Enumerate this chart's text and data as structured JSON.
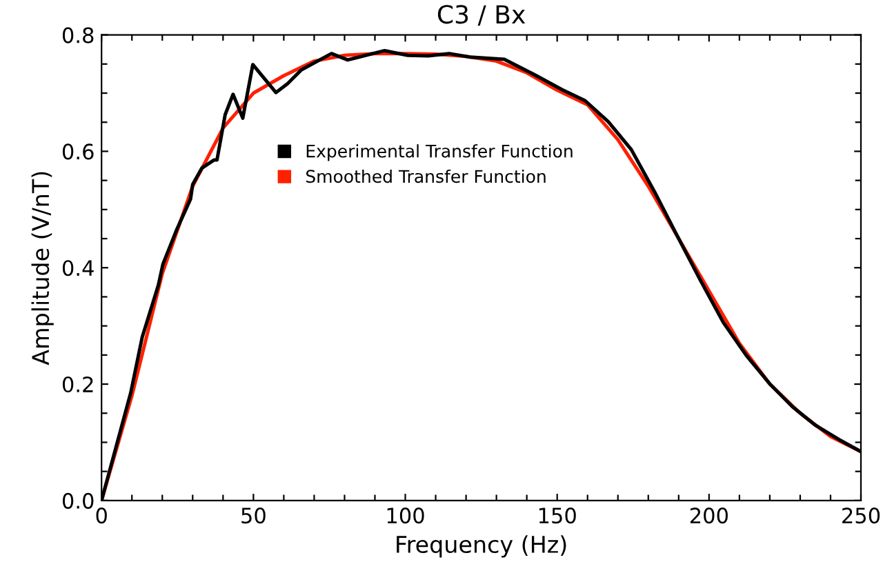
{
  "chart_data": {
    "type": "line",
    "title": "C3 / Bx",
    "xlabel": "Frequency (Hz)",
    "ylabel": "Amplitude (V/nT)",
    "xlim": [
      0,
      250
    ],
    "ylim": [
      0,
      0.8
    ],
    "xticks": [
      0,
      {
        "value": 10,
        "label": null
      },
      {
        "value": 20,
        "label": null
      },
      {
        "value": 30,
        "label": null
      },
      {
        "value": 40,
        "label": null
      },
      50,
      {
        "value": 60,
        "label": null
      },
      {
        "value": 70,
        "label": null
      },
      {
        "value": 80,
        "label": null
      },
      {
        "value": 90,
        "label": null
      },
      100,
      {
        "value": 110,
        "label": null
      },
      {
        "value": 120,
        "label": null
      },
      {
        "value": 130,
        "label": null
      },
      {
        "value": 140,
        "label": null
      },
      150,
      {
        "value": 160,
        "label": null
      },
      {
        "value": 170,
        "label": null
      },
      {
        "value": 180,
        "label": null
      },
      {
        "value": 190,
        "label": null
      },
      200,
      {
        "value": 210,
        "label": null
      },
      {
        "value": 220,
        "label": null
      },
      {
        "value": 230,
        "label": null
      },
      {
        "value": 240,
        "label": null
      },
      250
    ],
    "yticks": [
      {
        "value": 0,
        "label": "0.0"
      },
      {
        "value": 0.05,
        "label": null
      },
      {
        "value": 0.1,
        "label": null
      },
      {
        "value": 0.15,
        "label": null
      },
      0.2,
      {
        "value": 0.25,
        "label": null
      },
      {
        "value": 0.3,
        "label": null
      },
      {
        "value": 0.35,
        "label": null
      },
      0.4,
      {
        "value": 0.45,
        "label": null
      },
      {
        "value": 0.5,
        "label": null
      },
      {
        "value": 0.55,
        "label": null
      },
      0.6,
      {
        "value": 0.65,
        "label": null
      },
      {
        "value": 0.7,
        "label": null
      },
      {
        "value": 0.75,
        "label": null
      },
      0.8
    ],
    "grid": false,
    "legend": "top",
    "marker": "none",
    "line_style": "solid",
    "series": [
      {
        "name": "Smoothed Transfer Function",
        "color": "#ff2000",
        "x": [
          0,
          10,
          20,
          30,
          40,
          50,
          60,
          70,
          80,
          90,
          100,
          110,
          120,
          130,
          140,
          150,
          160,
          170,
          180,
          190,
          200,
          210,
          220,
          230,
          240,
          250
        ],
        "values": [
          0,
          0.18,
          0.39,
          0.54,
          0.64,
          0.7,
          0.73,
          0.755,
          0.765,
          0.768,
          0.768,
          0.767,
          0.763,
          0.755,
          0.735,
          0.705,
          0.68,
          0.62,
          0.54,
          0.45,
          0.36,
          0.27,
          0.2,
          0.15,
          0.11,
          0.084
        ]
      },
      {
        "name": "Experimental Transfer Function",
        "color": "#000000",
        "x": [
          0,
          9.6,
          13.4,
          18.7,
          20.2,
          24.8,
          29.3,
          30,
          33,
          37,
          38,
          40.7,
          43.3,
          46.5,
          49.8,
          57.4,
          61.2,
          65.8,
          75.7,
          81,
          93.2,
          100.8,
          107.6,
          114.4,
          121.3,
          132.6,
          142.4,
          151.6,
          159.2,
          166.8,
          174.4,
          182,
          189.6,
          197.2,
          204.7,
          212.3,
          219.9,
          227.5,
          235.1,
          242.7,
          250
        ],
        "values": [
          0,
          0.185,
          0.281,
          0.37,
          0.406,
          0.466,
          0.518,
          0.543,
          0.571,
          0.585,
          0.585,
          0.663,
          0.698,
          0.657,
          0.749,
          0.701,
          0.716,
          0.74,
          0.768,
          0.757,
          0.773,
          0.765,
          0.764,
          0.768,
          0.762,
          0.758,
          0.732,
          0.706,
          0.687,
          0.651,
          0.603,
          0.531,
          0.454,
          0.378,
          0.306,
          0.249,
          0.201,
          0.161,
          0.129,
          0.105,
          0.084
        ]
      }
    ]
  }
}
